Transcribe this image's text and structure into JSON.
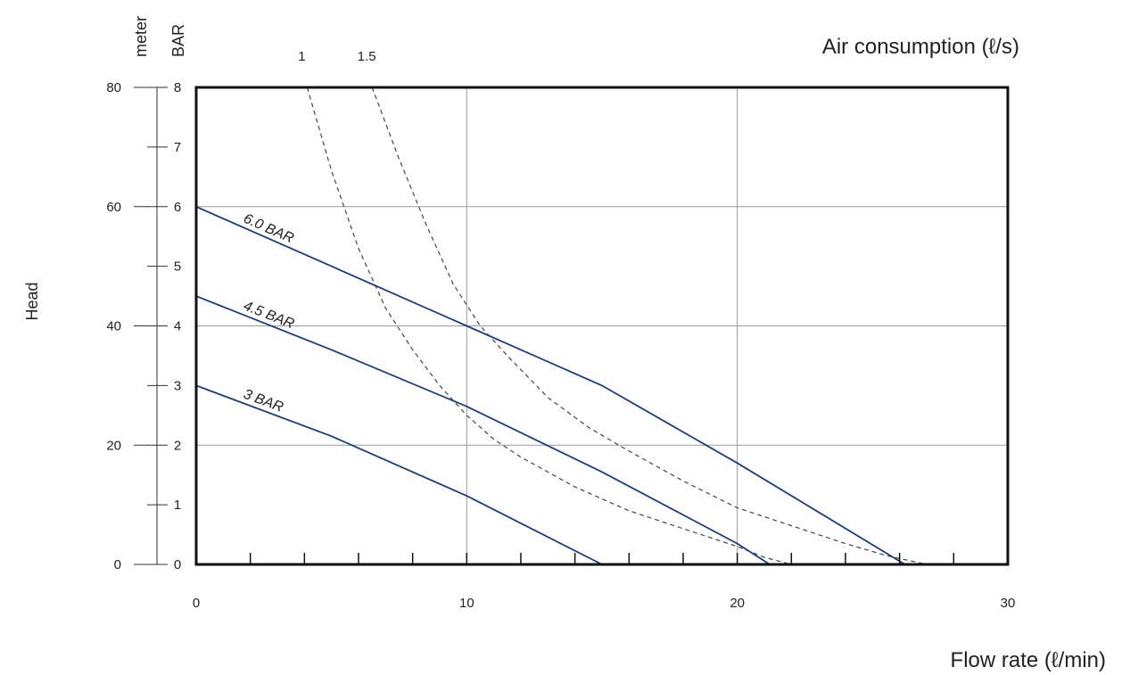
{
  "chart_data": {
    "type": "line",
    "title": "",
    "xlabel": "Flow rate (ℓ/min)",
    "xlim": [
      0,
      30
    ],
    "x_ticks": [
      "0",
      "10",
      "20",
      "30"
    ],
    "ylabel": "Head",
    "y_axis_meter": {
      "unit_label": "meter",
      "lim": [
        0,
        80
      ],
      "ticks": [
        "0",
        "20",
        "40",
        "60",
        "80"
      ]
    },
    "y_axis_bar": {
      "unit_label": "BAR",
      "lim": [
        0,
        8
      ],
      "ticks": [
        "0",
        "1",
        "2",
        "3",
        "4",
        "5",
        "6",
        "7",
        "8"
      ]
    },
    "air_consumption": {
      "label": "Air consumption (ℓ/s)",
      "ticks": [
        "1",
        "1.5"
      ],
      "series": [
        {
          "name": "1",
          "style": "dashed",
          "x": [
            4.1,
            5.0,
            6.0,
            7.0,
            8.0,
            9.0,
            10.0,
            11.0,
            12.0,
            14.0,
            16.0,
            18.0,
            20.0,
            21.0,
            22.0
          ],
          "y": [
            8.0,
            6.6,
            5.3,
            4.3,
            3.6,
            3.0,
            2.5,
            2.1,
            1.8,
            1.3,
            0.9,
            0.6,
            0.3,
            0.12,
            0.0
          ]
        },
        {
          "name": "1.5",
          "style": "dashed",
          "x": [
            6.5,
            7.5,
            8.5,
            9.5,
            10.5,
            11.5,
            13.0,
            14.5,
            16.0,
            18.0,
            20.0,
            22.0,
            24.0,
            25.5,
            27.0
          ],
          "y": [
            8.0,
            6.8,
            5.7,
            4.7,
            4.0,
            3.5,
            2.8,
            2.3,
            1.9,
            1.4,
            0.95,
            0.65,
            0.35,
            0.15,
            0.0
          ]
        }
      ]
    },
    "series": [
      {
        "name": "6.0 BAR",
        "color": "#1a3d7c",
        "x": [
          0,
          5,
          10,
          15,
          20,
          26.2
        ],
        "y": [
          6.0,
          5.0,
          4.0,
          3.0,
          1.7,
          0.0
        ]
      },
      {
        "name": "4.5 BAR",
        "color": "#1a3d7c",
        "x": [
          0,
          5,
          10,
          15,
          20,
          21.2
        ],
        "y": [
          4.5,
          3.6,
          2.65,
          1.55,
          0.35,
          0.0
        ]
      },
      {
        "name": "3 BAR",
        "color": "#1a3d7c",
        "x": [
          0,
          5,
          10,
          15
        ],
        "y": [
          3.0,
          2.15,
          1.15,
          0.0
        ]
      }
    ],
    "grid": true,
    "legend": "none"
  }
}
